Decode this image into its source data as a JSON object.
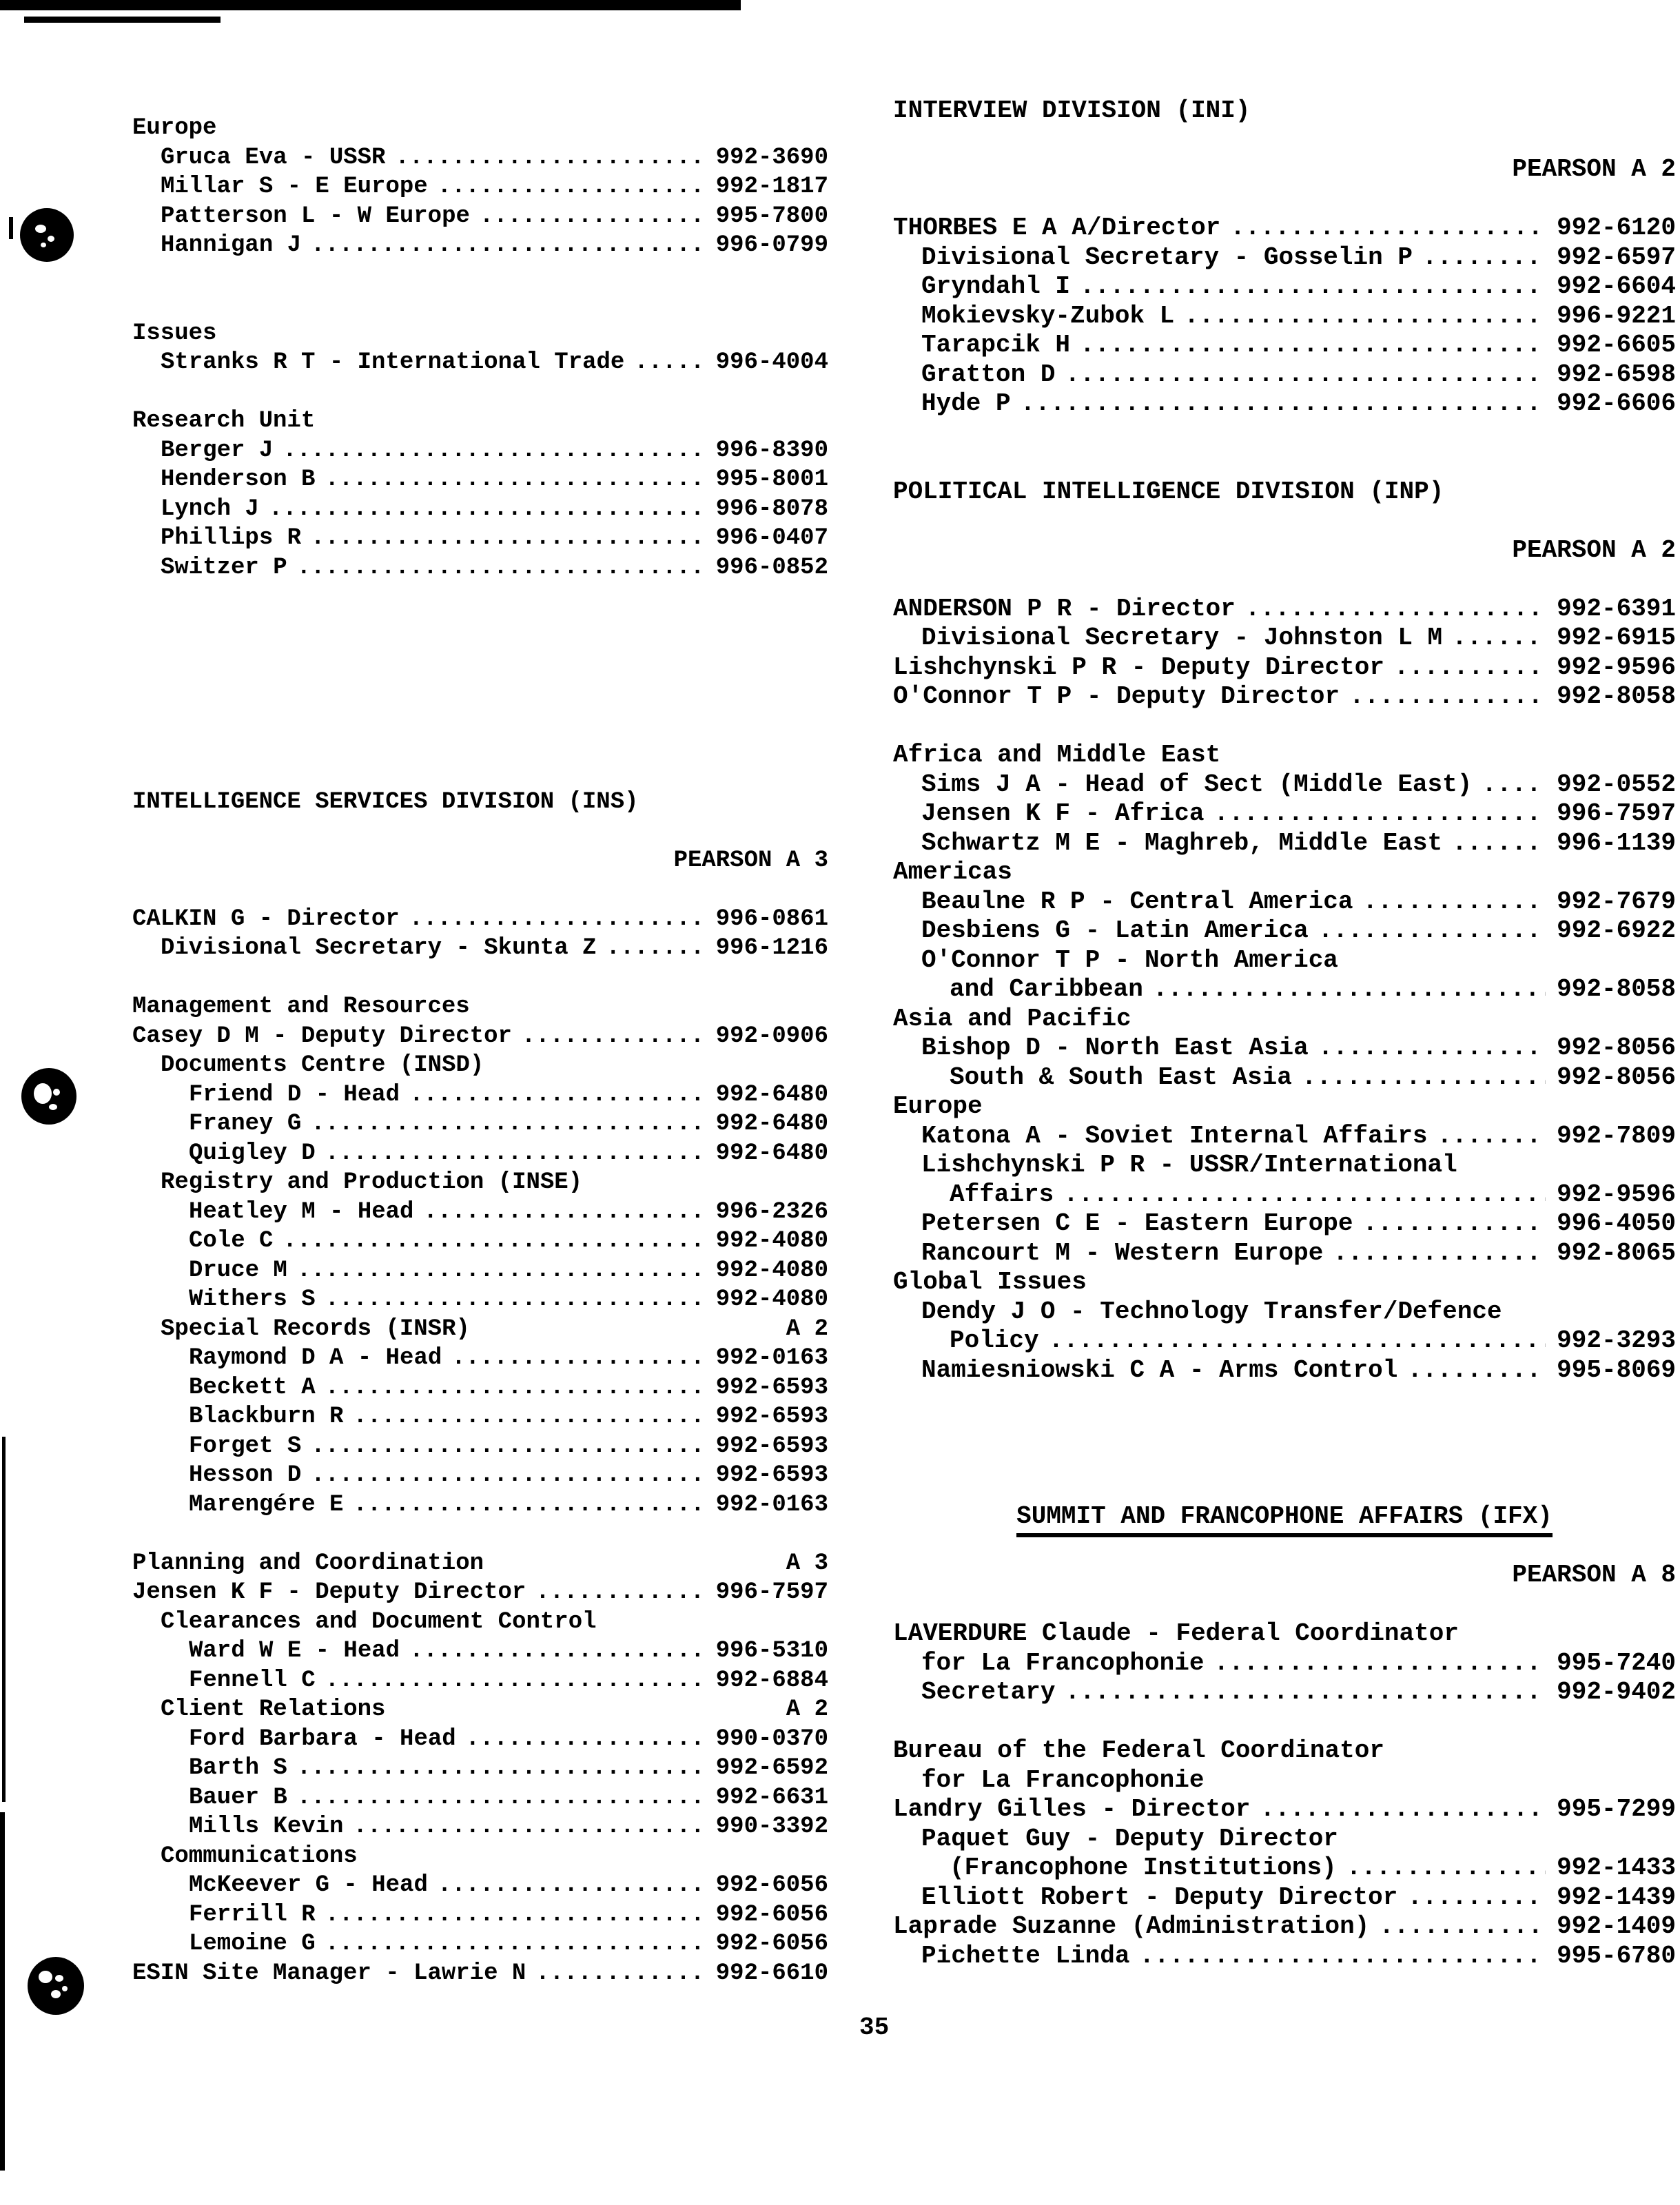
{
  "page": {
    "number": "35"
  },
  "colors": {
    "ink": "#000000",
    "paper": "#ffffff"
  },
  "columns": {
    "left": {
      "lines": [
        {
          "text": "Europe",
          "indent": 0
        },
        {
          "text": "Gruca Eva - USSR",
          "indent": 1,
          "phone": "992-3690"
        },
        {
          "text": "Millar S - E Europe",
          "indent": 1,
          "phone": "992-1817"
        },
        {
          "text": "Patterson L - W Europe",
          "indent": 1,
          "phone": "995-7800"
        },
        {
          "text": "Hannigan J",
          "indent": 1,
          "phone": "996-0799"
        },
        {
          "blank": true
        },
        {
          "blank": true
        },
        {
          "text": "Issues",
          "indent": 0
        },
        {
          "text": "Stranks R T - International Trade",
          "indent": 1,
          "phone": "996-4004"
        },
        {
          "blank": true
        },
        {
          "text": "Research Unit",
          "indent": 0
        },
        {
          "text": "Berger J",
          "indent": 1,
          "phone": "996-8390"
        },
        {
          "text": "Henderson B",
          "indent": 1,
          "phone": "995-8001"
        },
        {
          "text": "Lynch J",
          "indent": 1,
          "phone": "996-8078"
        },
        {
          "text": "Phillips R",
          "indent": 1,
          "phone": "996-0407"
        },
        {
          "text": "Switzer P",
          "indent": 1,
          "phone": "996-0852"
        },
        {
          "blank": true
        },
        {
          "blank": true
        },
        {
          "blank": true
        },
        {
          "blank": true
        },
        {
          "blank": true
        },
        {
          "blank": true
        },
        {
          "blank": true
        },
        {
          "text": "INTELLIGENCE SERVICES DIVISION (INS)",
          "indent": 0
        },
        {
          "blank": true
        },
        {
          "text": "",
          "indent": 0,
          "code": "PEARSON A 3"
        },
        {
          "blank": true
        },
        {
          "text": "CALKIN G - Director",
          "indent": 0,
          "phone": "996-0861"
        },
        {
          "text": "Divisional Secretary - Skunta Z",
          "indent": 1,
          "phone": "996-1216"
        },
        {
          "blank": true
        },
        {
          "text": "Management and Resources",
          "indent": 0
        },
        {
          "text": "Casey D M - Deputy Director",
          "indent": 0,
          "phone": "992-0906"
        },
        {
          "text": "Documents Centre (INSD)",
          "indent": 1
        },
        {
          "text": "Friend D - Head",
          "indent": 2,
          "phone": "992-6480"
        },
        {
          "text": "Franey G",
          "indent": 2,
          "phone": "992-6480"
        },
        {
          "text": "Quigley D",
          "indent": 2,
          "phone": "992-6480"
        },
        {
          "text": "Registry and Production (INSE)",
          "indent": 1
        },
        {
          "text": "Heatley M - Head",
          "indent": 2,
          "phone": "996-2326"
        },
        {
          "text": "Cole C",
          "indent": 2,
          "phone": "992-4080"
        },
        {
          "text": "Druce M",
          "indent": 2,
          "phone": "992-4080"
        },
        {
          "text": "Withers S",
          "indent": 2,
          "phone": "992-4080"
        },
        {
          "text": "Special Records (INSR)",
          "indent": 1,
          "code": "A 2"
        },
        {
          "text": "Raymond D A - Head",
          "indent": 2,
          "phone": "992-0163"
        },
        {
          "text": "Beckett A",
          "indent": 2,
          "phone": "992-6593"
        },
        {
          "text": "Blackburn R",
          "indent": 2,
          "phone": "992-6593"
        },
        {
          "text": "Forget S",
          "indent": 2,
          "phone": "992-6593"
        },
        {
          "text": "Hesson D",
          "indent": 2,
          "phone": "992-6593"
        },
        {
          "text": "Marengére E",
          "indent": 2,
          "phone": "992-0163"
        },
        {
          "blank": true
        },
        {
          "text": "Planning and Coordination",
          "indent": 0,
          "code": "A 3"
        },
        {
          "text": "Jensen K F - Deputy Director",
          "indent": 0,
          "phone": "996-7597"
        },
        {
          "text": "Clearances and Document Control",
          "indent": 1
        },
        {
          "text": "Ward W E - Head",
          "indent": 2,
          "phone": "996-5310"
        },
        {
          "text": "Fennell C",
          "indent": 2,
          "phone": "992-6884"
        },
        {
          "text": "Client Relations",
          "indent": 1,
          "code": "A 2"
        },
        {
          "text": "Ford Barbara - Head",
          "indent": 2,
          "phone": "990-0370"
        },
        {
          "text": "Barth S",
          "indent": 2,
          "phone": "992-6592"
        },
        {
          "text": "Bauer B",
          "indent": 2,
          "phone": "992-6631"
        },
        {
          "text": "Mills Kevin",
          "indent": 2,
          "phone": "990-3392"
        },
        {
          "text": "Communications",
          "indent": 1
        },
        {
          "text": "McKeever G - Head",
          "indent": 2,
          "phone": "992-6056"
        },
        {
          "text": "Ferrill R",
          "indent": 2,
          "phone": "992-6056"
        },
        {
          "text": "Lemoine G",
          "indent": 2,
          "phone": "992-6056"
        },
        {
          "text": "ESIN Site Manager - Lawrie N",
          "indent": 0,
          "phone": "992-6610"
        }
      ]
    },
    "right": {
      "lines": [
        {
          "text": "INTERVIEW DIVISION (INI)",
          "indent": 0
        },
        {
          "blank": true
        },
        {
          "text": "",
          "indent": 0,
          "code": "PEARSON A 2"
        },
        {
          "blank": true
        },
        {
          "text": "THORBES E A A/Director",
          "indent": 0,
          "phone": "992-6120"
        },
        {
          "text": "Divisional Secretary - Gosselin P",
          "indent": 1,
          "phone": "992-6597"
        },
        {
          "text": "Gryndahl I",
          "indent": 1,
          "phone": "992-6604"
        },
        {
          "text": "Mokievsky-Zubok L",
          "indent": 1,
          "phone": "996-9221"
        },
        {
          "text": "Tarapcik H",
          "indent": 1,
          "phone": "992-6605"
        },
        {
          "text": "Gratton D",
          "indent": 1,
          "phone": "992-6598"
        },
        {
          "text": "Hyde P",
          "indent": 1,
          "phone": "992-6606"
        },
        {
          "blank": true
        },
        {
          "blank": true
        },
        {
          "text": "POLITICAL INTELLIGENCE DIVISION (INP)",
          "indent": 0
        },
        {
          "blank": true
        },
        {
          "text": "",
          "indent": 0,
          "code": "PEARSON A 2"
        },
        {
          "blank": true
        },
        {
          "text": "ANDERSON P R - Director",
          "indent": 0,
          "phone": "992-6391"
        },
        {
          "text": "Divisional Secretary - Johnston L M",
          "indent": 1,
          "phone": "992-6915"
        },
        {
          "text": "Lishchynski P R - Deputy Director",
          "indent": 0,
          "phone": "992-9596"
        },
        {
          "text": "O'Connor T P - Deputy Director",
          "indent": 0,
          "phone": "992-8058"
        },
        {
          "blank": true
        },
        {
          "text": "Africa and Middle East",
          "indent": 0
        },
        {
          "text": "Sims J A - Head of Sect (Middle East)",
          "indent": 1,
          "phone": "992-0552"
        },
        {
          "text": "Jensen K F - Africa",
          "indent": 1,
          "phone": "996-7597"
        },
        {
          "text": "Schwartz M E - Maghreb, Middle East",
          "indent": 1,
          "phone": "996-1139"
        },
        {
          "text": "Americas",
          "indent": 0
        },
        {
          "text": "Beaulne R P - Central America",
          "indent": 1,
          "phone": "992-7679"
        },
        {
          "text": "Desbiens G - Latin America",
          "indent": 1,
          "phone": "992-6922"
        },
        {
          "text": "O'Connor T P - North America",
          "indent": 1
        },
        {
          "text": "and Caribbean",
          "indent": 2,
          "phone": "992-8058"
        },
        {
          "text": "Asia and Pacific",
          "indent": 0
        },
        {
          "text": "Bishop D - North East Asia",
          "indent": 1,
          "phone": "992-8056"
        },
        {
          "text": "South & South East Asia",
          "indent": 2,
          "phone": "992-8056"
        },
        {
          "text": "Europe",
          "indent": 0
        },
        {
          "text": "Katona A - Soviet Internal Affairs",
          "indent": 1,
          "phone": "992-7809"
        },
        {
          "text": "Lishchynski P R - USSR/International",
          "indent": 1
        },
        {
          "text": "Affairs",
          "indent": 2,
          "phone": "992-9596"
        },
        {
          "text": "Petersen C E - Eastern Europe",
          "indent": 1,
          "phone": "996-4050"
        },
        {
          "text": "Rancourt M - Western Europe",
          "indent": 1,
          "phone": "992-8065"
        },
        {
          "text": "Global Issues",
          "indent": 0
        },
        {
          "text": "Dendy J O - Technology Transfer/Defence",
          "indent": 1
        },
        {
          "text": "Policy",
          "indent": 2,
          "phone": "992-3293"
        },
        {
          "text": "Namiesniowski C A - Arms Control",
          "indent": 1,
          "phone": "995-8069"
        },
        {
          "blank": true
        },
        {
          "blank": true
        },
        {
          "blank": true
        },
        {
          "blank": true
        },
        {
          "text": "SUMMIT AND FRANCOPHONE AFFAIRS (IFX)",
          "indent": 0,
          "style": "center-underline"
        },
        {
          "blank": true
        },
        {
          "text": "",
          "indent": 0,
          "code": "PEARSON A 8"
        },
        {
          "blank": true
        },
        {
          "text": "LAVERDURE Claude - Federal Coordinator",
          "indent": 0
        },
        {
          "text": "for La Francophonie",
          "indent": 1,
          "phone": "995-7240"
        },
        {
          "text": "Secretary",
          "indent": 1,
          "phone": "992-9402"
        },
        {
          "blank": true
        },
        {
          "text": "Bureau of the Federal Coordinator",
          "indent": 0
        },
        {
          "text": "for La Francophonie",
          "indent": 1
        },
        {
          "text": "Landry Gilles - Director",
          "indent": 0,
          "phone": "995-7299"
        },
        {
          "text": "Paquet Guy - Deputy Director",
          "indent": 1
        },
        {
          "text": "(Francophone Institutions)",
          "indent": 2,
          "phone": "992-1433"
        },
        {
          "text": "Elliott Robert - Deputy Director",
          "indent": 1,
          "phone": "992-1439"
        },
        {
          "text": "Laprade Suzanne (Administration)",
          "indent": 0,
          "phone": "992-1409"
        },
        {
          "text": "Pichette Linda",
          "indent": 1,
          "phone": "995-6780"
        }
      ]
    }
  }
}
